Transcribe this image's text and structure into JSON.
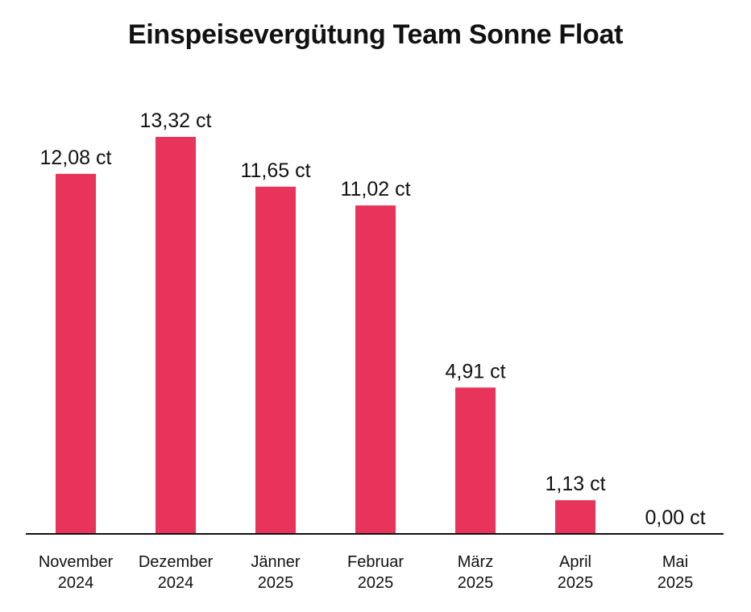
{
  "chart_data": {
    "type": "bar",
    "title": "Einspeisevergütung Team Sonne Float",
    "categories": [
      [
        "November",
        "2024"
      ],
      [
        "Dezember",
        "2024"
      ],
      [
        "Jänner",
        "2025"
      ],
      [
        "Februar",
        "2025"
      ],
      [
        "März",
        "2025"
      ],
      [
        "April",
        "2025"
      ],
      [
        "Mai",
        "2025"
      ]
    ],
    "values": [
      12.08,
      13.32,
      11.65,
      11.02,
      4.91,
      1.13,
      0.0
    ],
    "value_labels": [
      "12,08 ct",
      "13,32 ct",
      "11,65 ct",
      "11,02 ct",
      "4,91 ct",
      "1,13 ct",
      "0,00 ct"
    ],
    "xlabel": "",
    "ylabel": "",
    "ylim": [
      0,
      13.32
    ],
    "grid": false,
    "colors": {
      "bar": "#E8335A",
      "axis": "#111111",
      "text": "#111111"
    }
  }
}
